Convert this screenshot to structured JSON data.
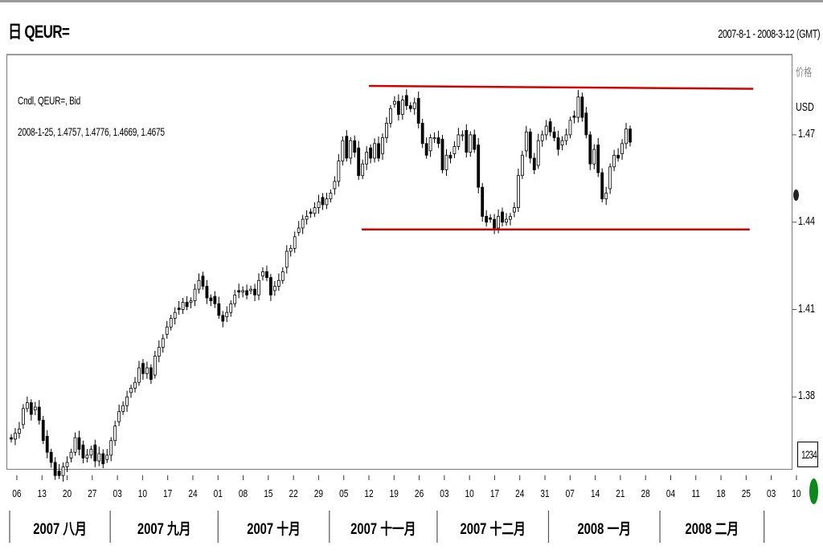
{
  "header": {
    "title": "日 QEUR=",
    "range": "2007-8-1 - 2008-3-12 (GMT)"
  },
  "legend": {
    "line1": "Cndl, QEUR=, Bid",
    "line2": "2008-1-25, 1.4757, 1.4776, 1.4669, 1.4675"
  },
  "y_axis": {
    "unit_cn": "价格",
    "unit": "USD",
    "box_label": "1234"
  },
  "colors": {
    "candle": "#000000",
    "trendline": "#d40000",
    "frame": "#7a7a7a",
    "marker_green": "#0a8a1a"
  },
  "icons": {
    "left_marker": "price-dot-icon",
    "right_marker": "green-status-icon"
  },
  "chart_data": {
    "type": "candlestick",
    "title": "QEUR=",
    "ylabel": "USD",
    "ylim": [
      1.355,
      1.497
    ],
    "yticks": [
      {
        "value": 1.38,
        "label": "1.38"
      },
      {
        "value": 1.41,
        "label": "1.41"
      },
      {
        "value": 1.44,
        "label": "1.44"
      },
      {
        "value": 1.47,
        "label": "1.47"
      }
    ],
    "date_ticks": [
      "06",
      "13",
      "20",
      "27",
      "03",
      "10",
      "17",
      "24",
      "01",
      "08",
      "15",
      "22",
      "29",
      "05",
      "12",
      "19",
      "26",
      "03",
      "10",
      "17",
      "24",
      "31",
      "07",
      "14",
      "21",
      "28",
      "04",
      "11",
      "18",
      "25",
      "03",
      "10"
    ],
    "month_labels": [
      "2007 八月",
      "2007 九月",
      "2007 十月",
      "2007 十一月",
      "2007 十二月",
      "2008 一月",
      "2008 二月"
    ],
    "month_days": [
      31,
      30,
      31,
      30,
      31,
      31,
      29
    ],
    "trendlines": [
      {
        "name": "resistance",
        "start": [
          "2007-11-12",
          1.4868
        ],
        "end": [
          "2008-02-27",
          1.4858
        ]
      },
      {
        "name": "support",
        "start": [
          "2007-11-10",
          1.4375
        ],
        "end": [
          "2008-02-26",
          1.4375
        ]
      }
    ],
    "close": [
      1.3655,
      1.3675,
      1.369,
      1.376,
      1.378,
      1.374,
      1.3765,
      1.372,
      1.365,
      1.361,
      1.3575,
      1.353,
      1.353,
      1.356,
      1.3575,
      1.361,
      1.366,
      1.362,
      1.359,
      1.36,
      1.362,
      1.358,
      1.3605,
      1.357,
      1.36,
      1.365,
      1.37,
      1.375,
      1.377,
      1.38,
      1.383,
      1.385,
      1.39,
      1.388,
      1.39,
      1.386,
      1.394,
      1.397,
      1.4,
      1.404,
      1.407,
      1.409,
      1.41,
      1.4125,
      1.411,
      1.413,
      1.417,
      1.42,
      1.418,
      1.414,
      1.413,
      1.412,
      1.408,
      1.406,
      1.409,
      1.412,
      1.415,
      1.416,
      1.4165,
      1.415,
      1.417,
      1.415,
      1.42,
      1.423,
      1.421,
      1.415,
      1.418,
      1.42,
      1.423,
      1.43,
      1.431,
      1.435,
      1.438,
      1.441,
      1.442,
      1.443,
      1.445,
      1.447,
      1.446,
      1.448,
      1.45,
      1.454,
      1.461,
      1.468,
      1.462,
      1.468,
      1.464,
      1.456,
      1.46,
      1.464,
      1.462,
      1.467,
      1.462,
      1.469,
      1.474,
      1.479,
      1.4815,
      1.477,
      1.482,
      1.48,
      1.479,
      1.481,
      1.474,
      1.467,
      1.463,
      1.469,
      1.469,
      1.467,
      1.458,
      1.463,
      1.462,
      1.466,
      1.47,
      1.47,
      1.464,
      1.47,
      1.465,
      1.452,
      1.442,
      1.44,
      1.441,
      1.438,
      1.442,
      1.44,
      1.441,
      1.442,
      1.445,
      1.456,
      1.463,
      1.471,
      1.462,
      1.458,
      1.468,
      1.47,
      1.473,
      1.471,
      1.469,
      1.465,
      1.468,
      1.47,
      1.475,
      1.476,
      1.483,
      1.476,
      1.47,
      1.46,
      1.465,
      1.457,
      1.448,
      1.45,
      1.459,
      1.463,
      1.462,
      1.467,
      1.472,
      1.4675
    ]
  }
}
